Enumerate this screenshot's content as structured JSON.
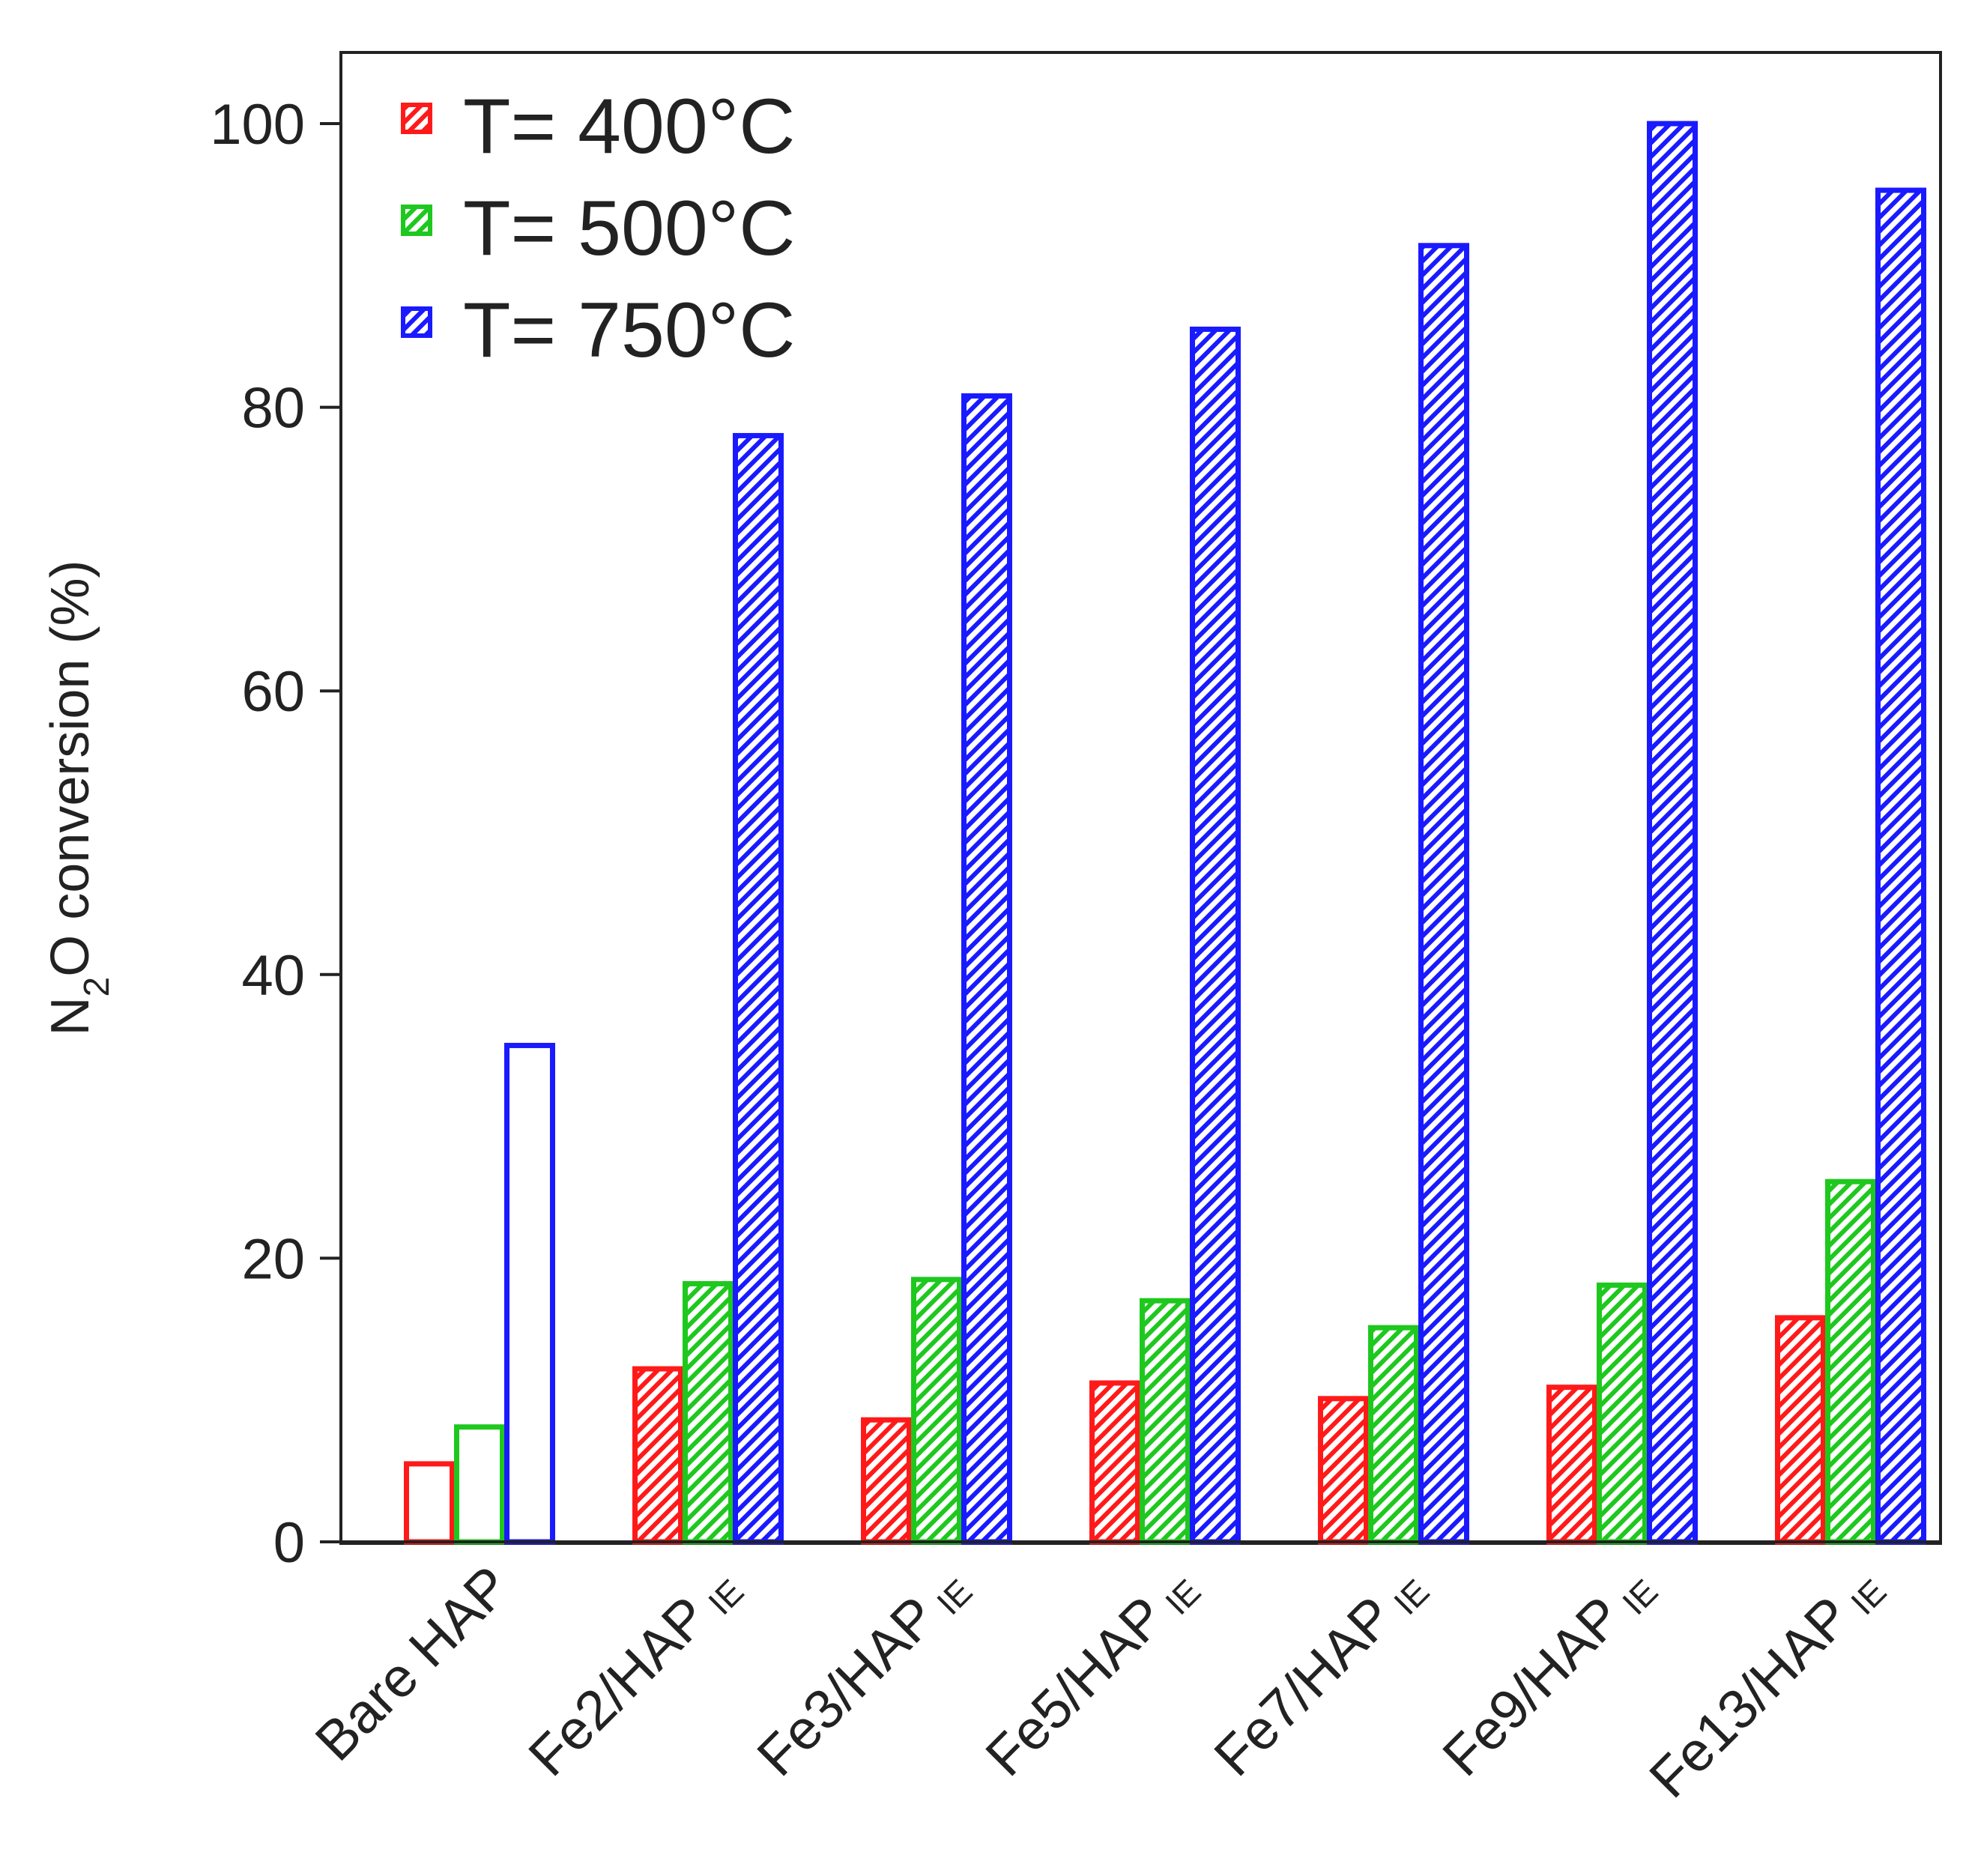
{
  "chart_data": {
    "type": "bar",
    "title": "",
    "xlabel": "",
    "ylabel": {
      "main": "N",
      "sub": "2",
      "rest": "O conversion (%)"
    },
    "ylim": [
      0,
      105
    ],
    "yticks": [
      "0",
      "20",
      "40",
      "60",
      "80",
      "100"
    ],
    "ytick_values": [
      0,
      20,
      40,
      60,
      80,
      100
    ],
    "grid": false,
    "legend_position": "top-left",
    "categories": [
      {
        "main": "Bare HAP",
        "sub": ""
      },
      {
        "main": "Fe2/HAP",
        "sub": "IE"
      },
      {
        "main": "Fe3/HAP",
        "sub": "IE"
      },
      {
        "main": "Fe5/HAP",
        "sub": "IE"
      },
      {
        "main": "Fe7/HAP",
        "sub": "IE"
      },
      {
        "main": "Fe9/HAP",
        "sub": "IE"
      },
      {
        "main": "Fe13/HAP",
        "sub": "IE"
      }
    ],
    "hatched": [
      false,
      true,
      true,
      true,
      true,
      true,
      true
    ],
    "series": [
      {
        "name": "T= 400°C",
        "color": "#ff1a1a",
        "values": [
          5.5,
          12.2,
          8.6,
          11.2,
          10.1,
          10.9,
          15.8
        ]
      },
      {
        "name": "T= 500°C",
        "color": "#1ec81e",
        "values": [
          8.1,
          18.2,
          18.5,
          17.0,
          15.1,
          18.1,
          25.4
        ]
      },
      {
        "name": "T= 750°C",
        "color": "#1a1aff",
        "values": [
          35.0,
          78.0,
          80.8,
          85.5,
          91.4,
          100.0,
          95.3
        ]
      }
    ]
  }
}
